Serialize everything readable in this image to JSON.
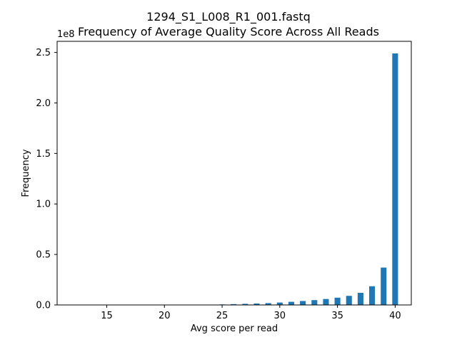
{
  "chart_data": {
    "type": "bar",
    "title_line1": "1294_S1_L008_R1_001.fastq",
    "title_line2": "Frequency of Average Quality Score Across All Reads",
    "xlabel": "Avg score per read",
    "ylabel": "Frequency",
    "y_offset_label": "1e8",
    "xlim": [
      10.7,
      41.4
    ],
    "ylim": [
      0,
      2.61
    ],
    "x_ticks": [
      15,
      20,
      25,
      30,
      35,
      40
    ],
    "y_ticks": [
      0.0,
      0.5,
      1.0,
      1.5,
      2.0,
      2.5
    ],
    "y_tick_labels": [
      "0.0",
      "0.5",
      "1.0",
      "1.5",
      "2.0",
      "2.5"
    ],
    "bar_width": 0.5,
    "bar_color": "#1f77b4",
    "grid": false,
    "series": [
      {
        "x": [
          25,
          26,
          27,
          28,
          29,
          30,
          31,
          32,
          33,
          34,
          35,
          36,
          37,
          38,
          39,
          40
        ],
        "values": [
          0.005,
          0.008,
          0.011,
          0.014,
          0.018,
          0.024,
          0.031,
          0.039,
          0.048,
          0.059,
          0.072,
          0.09,
          0.12,
          0.185,
          0.37,
          2.49
        ]
      }
    ]
  }
}
